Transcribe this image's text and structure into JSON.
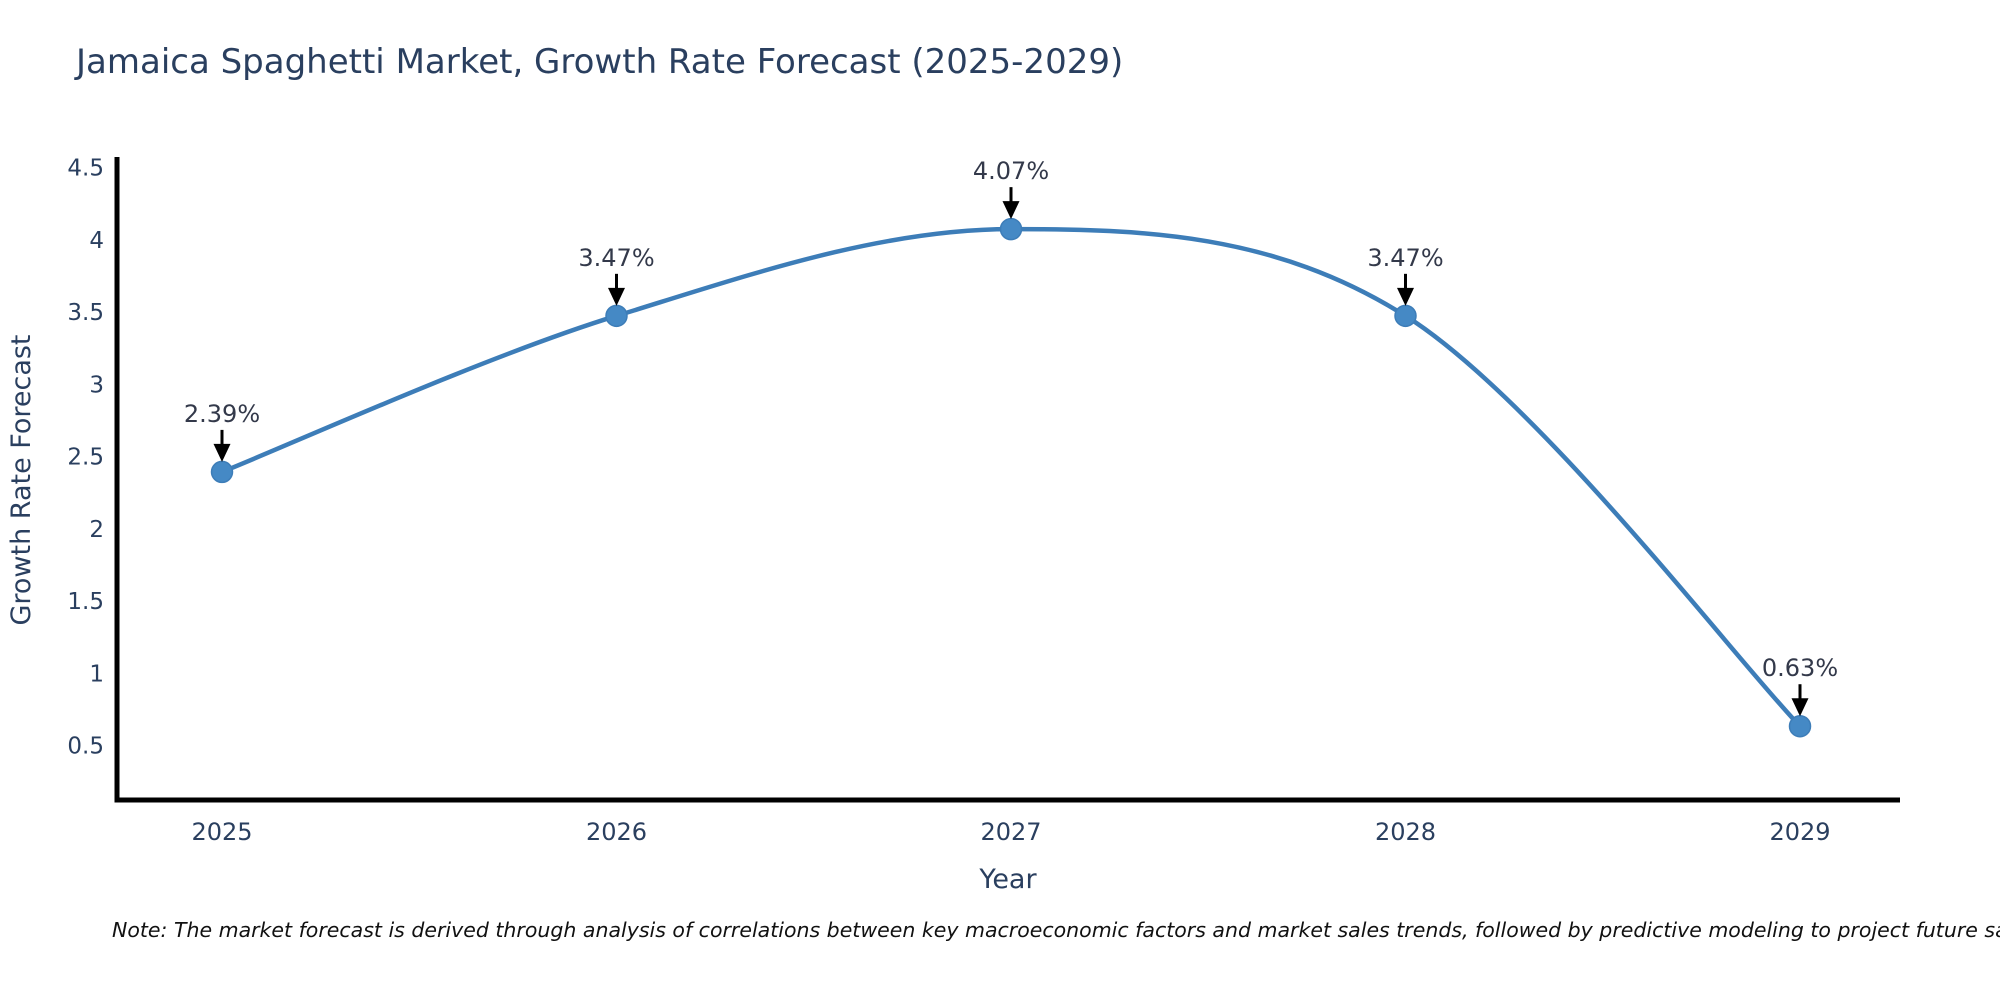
{
  "title": "Jamaica Spaghetti Market, Growth Rate Forecast (2025-2029)",
  "chart_data": {
    "type": "line",
    "line_shape": "spline",
    "title": "Jamaica Spaghetti Market, Growth Rate Forecast (2025-2029)",
    "xlabel": "Year",
    "ylabel": "Growth Rate Forecast",
    "categories": [
      "2025",
      "2026",
      "2027",
      "2028",
      "2029"
    ],
    "series": [
      {
        "name": "Growth Rate Forecast",
        "values": [
          2.39,
          3.47,
          4.07,
          3.47,
          0.63
        ]
      }
    ],
    "point_labels": [
      "2.39%",
      "3.47%",
      "4.07%",
      "3.47%",
      "0.63%"
    ],
    "ytick_labels": [
      "0.5",
      "1",
      "1.5",
      "2",
      "2.5",
      "3",
      "3.5",
      "4",
      "4.5"
    ],
    "ytick_values": [
      0.5,
      1,
      1.5,
      2,
      2.5,
      3,
      3.5,
      4,
      4.5
    ],
    "ylim": [
      0.11,
      4.62
    ],
    "grid": false,
    "legend_position": "none",
    "colors": {
      "line": "#3d7db8",
      "marker": "#4589c5",
      "axis_line": "#000000",
      "label_text": "#2a3f5f",
      "annotation_text": "#33394a",
      "annotation_arrow": "#000000"
    }
  },
  "note": {
    "text": "Note: The market forecast is derived through analysis of correlations between key macroeconomic factors and market sales trends, followed by predictive modeling to project future sales"
  }
}
